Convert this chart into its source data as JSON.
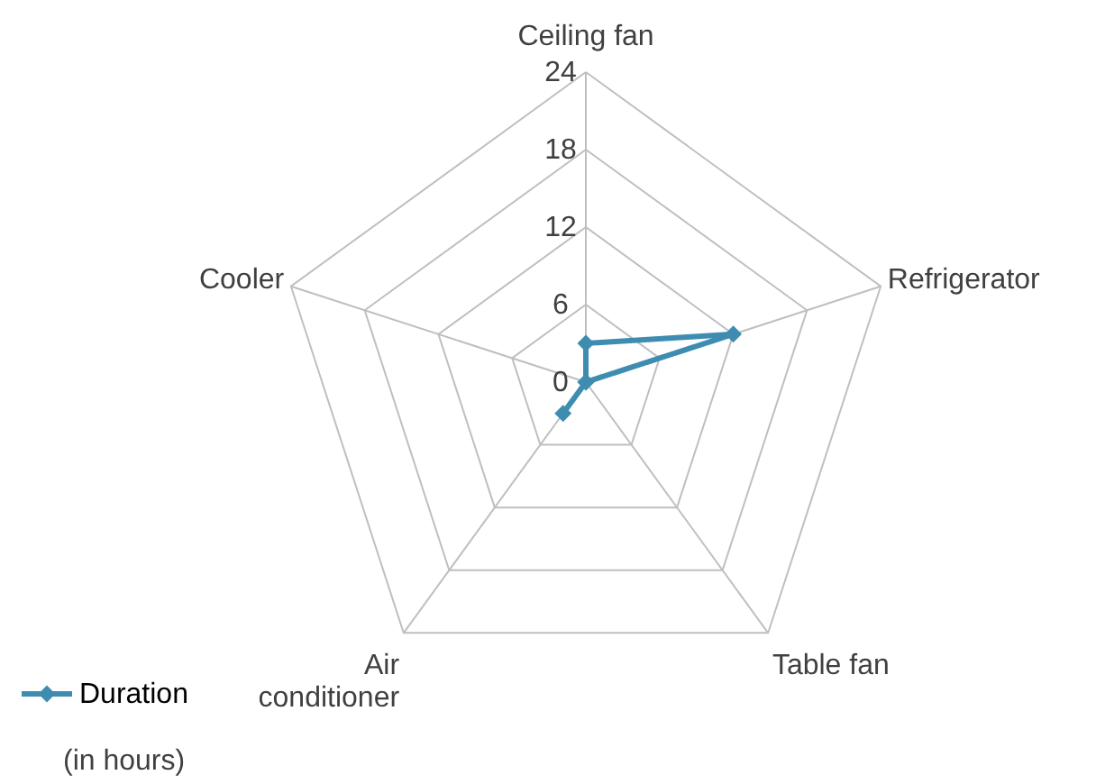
{
  "chart_data": {
    "type": "radar",
    "categories": [
      "Ceiling fan",
      "Refrigerator",
      "Table fan",
      "Air\nconditioner",
      "Cooler"
    ],
    "series": [
      {
        "name": "Duration",
        "color": "#3e8db0",
        "values": [
          3,
          12,
          0,
          3,
          0
        ]
      }
    ],
    "ylim": [
      0,
      24
    ],
    "yticks": [
      0,
      6,
      12,
      18,
      24
    ],
    "grid": true,
    "legend": "bottom left",
    "marker": "diamond",
    "line_style": "solid",
    "annotations": [
      "(in hours)"
    ]
  }
}
